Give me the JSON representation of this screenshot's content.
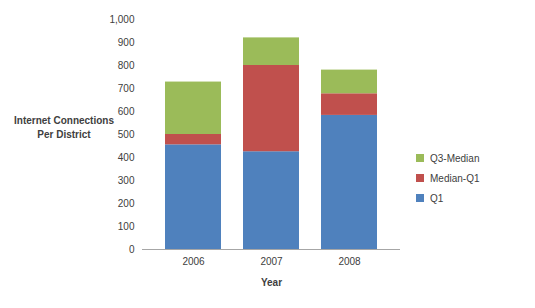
{
  "chart_data": {
    "type": "bar",
    "stacked": true,
    "x_label": "Year",
    "y_label": "Internet Connections Per District",
    "categories": [
      "2006",
      "2007",
      "2008"
    ],
    "series": [
      {
        "name": "Q1",
        "color": "#4f81bd",
        "values": [
          455,
          425,
          583
        ]
      },
      {
        "name": "Median-Q1",
        "color": "#c0504d",
        "values": [
          45,
          375,
          94
        ]
      },
      {
        "name": "Q3-Median",
        "color": "#9bbb59",
        "values": [
          228,
          120,
          103
        ]
      }
    ],
    "ylim": [
      0,
      1000
    ],
    "yticks": [
      0,
      100,
      200,
      300,
      400,
      500,
      600,
      700,
      800,
      900,
      1000
    ],
    "grid": false,
    "legend": "right"
  }
}
